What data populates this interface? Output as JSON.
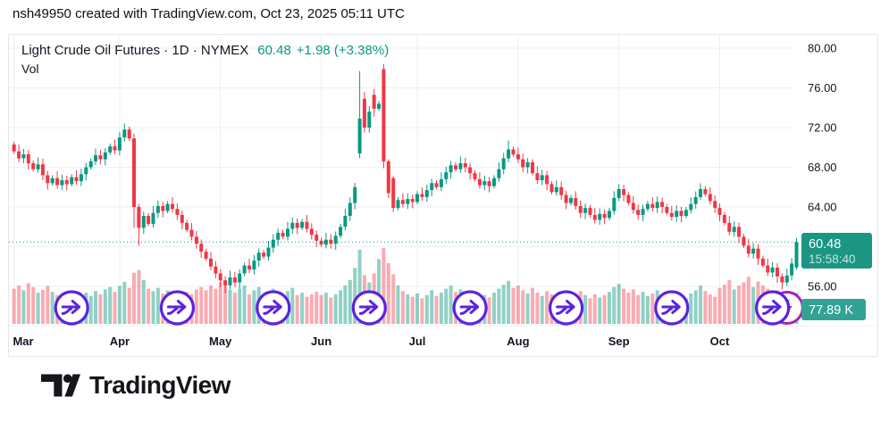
{
  "header": {
    "attribution": "nsh49950 created with TradingView.com, Oct 23, 2025 05:11 UTC"
  },
  "chart": {
    "legend": {
      "title": "Light Crude Oil Futures · 1D · NYMEX",
      "price": "60.48",
      "change": "+1.98 (+3.38%)",
      "indicator_label": "Vol"
    },
    "price_badge": {
      "price": "60.48",
      "countdown": "15:58:40"
    },
    "volume_badge": "77.89 K"
  },
  "ui": {
    "up": "#089981",
    "down": "#F23645",
    "vol_up": "rgba(8,153,129,0.45)",
    "vol_down": "rgba(242,54,69,0.42)",
    "grid": "#EDEFF3",
    "text": "#131722",
    "accent_purple": "#5B23E0",
    "accent_magenta": "#A224B5",
    "badge_price_bg": "#1A9683",
    "badge_vol_bg": "#32A294"
  },
  "chart_data": {
    "type": "candlestick",
    "title": "Light Crude Oil Futures · 1D · NYMEX",
    "interval": "1D",
    "exchange": "NYMEX",
    "last": 60.48,
    "change_abs": 1.98,
    "change_pct": 3.38,
    "countdown": "15:58:40",
    "last_volume_k": 77.89,
    "y_axis": {
      "ticks": [
        80,
        76,
        72,
        68,
        64,
        60,
        56
      ],
      "tick_labels": [
        "80.00",
        "76.00",
        "72.00",
        "68.00",
        "64.00",
        "60.00",
        "56.00"
      ],
      "hidden_ticks": [
        60
      ],
      "range": [
        54.5,
        81.5
      ]
    },
    "x_axis": {
      "labels": [
        "Mar",
        "Apr",
        "May",
        "Jun",
        "Jul",
        "Aug",
        "Sep",
        "Oct"
      ],
      "month_start_indices": [
        0,
        22,
        43,
        64,
        84,
        105,
        126,
        147
      ]
    },
    "first_open": 70.3,
    "closes": [
      69.6,
      68.9,
      69.3,
      68.4,
      67.8,
      68.3,
      67.2,
      66.4,
      66.9,
      66.2,
      66.7,
      66.3,
      67.0,
      66.6,
      67.3,
      68.0,
      68.6,
      69.2,
      68.8,
      69.5,
      70.1,
      69.7,
      71.0,
      71.8,
      70.9,
      64.0,
      61.9,
      63.1,
      62.3,
      63.4,
      64.1,
      63.6,
      64.3,
      63.8,
      63.2,
      62.4,
      61.7,
      61.0,
      60.3,
      59.5,
      58.8,
      58.0,
      57.3,
      56.6,
      56.1,
      56.9,
      56.4,
      57.3,
      58.1,
      57.7,
      58.6,
      59.4,
      59.0,
      59.9,
      60.7,
      61.4,
      61.0,
      61.8,
      62.4,
      61.9,
      62.5,
      61.8,
      61.2,
      60.6,
      60.2,
      60.7,
      60.3,
      61.1,
      62.0,
      63.1,
      64.4,
      66.0,
      72.9,
      72.0,
      73.6,
      73.9,
      74.4,
      68.6,
      65.4,
      63.9,
      64.7,
      64.3,
      64.8,
      64.5,
      65.3,
      65.0,
      65.7,
      66.4,
      66.0,
      66.8,
      67.5,
      68.2,
      67.8,
      68.4,
      68.0,
      67.4,
      66.8,
      66.2,
      66.6,
      66.1,
      66.9,
      67.8,
      68.9,
      69.8,
      69.3,
      68.8,
      68.0,
      68.5,
      67.4,
      66.7,
      67.2,
      66.3,
      65.5,
      66.0,
      65.2,
      64.4,
      64.9,
      64.1,
      63.4,
      63.9,
      63.2,
      62.7,
      63.3,
      62.9,
      63.6,
      64.9,
      65.8,
      65.2,
      64.4,
      63.7,
      63.2,
      63.8,
      64.3,
      63.9,
      64.5,
      64.0,
      63.4,
      63.0,
      63.6,
      63.1,
      63.7,
      64.3,
      65.0,
      65.8,
      65.3,
      64.6,
      63.9,
      63.2,
      62.4,
      61.5,
      62.0,
      61.0,
      60.1,
      59.3,
      59.8,
      58.8,
      58.1,
      57.4,
      57.9,
      57.0,
      56.4,
      57.1,
      58.3,
      60.48
    ],
    "volumes_k": [
      88,
      96,
      84,
      102,
      92,
      78,
      85,
      95,
      80,
      72,
      76,
      68,
      74,
      66,
      72,
      78,
      70,
      82,
      74,
      86,
      92,
      80,
      95,
      105,
      90,
      128,
      135,
      110,
      88,
      82,
      90,
      76,
      84,
      72,
      78,
      70,
      80,
      74,
      86,
      92,
      84,
      96,
      88,
      104,
      96,
      86,
      78,
      88,
      96,
      74,
      84,
      92,
      72,
      80,
      88,
      76,
      70,
      82,
      90,
      72,
      78,
      68,
      74,
      80,
      72,
      78,
      66,
      74,
      84,
      96,
      110,
      140,
      186,
      122,
      104,
      126,
      162,
      190,
      152,
      124,
      96,
      82,
      74,
      68,
      76,
      64,
      72,
      84,
      70,
      78,
      88,
      96,
      80,
      86,
      74,
      68,
      76,
      64,
      72,
      66,
      78,
      88,
      98,
      108,
      90,
      96,
      84,
      76,
      90,
      78,
      70,
      82,
      74,
      66,
      78,
      70,
      76,
      68,
      82,
      72,
      64,
      74,
      66,
      72,
      80,
      92,
      100,
      88,
      78,
      86,
      72,
      80,
      70,
      76,
      84,
      68,
      74,
      66,
      78,
      70,
      64,
      76,
      84,
      96,
      82,
      74,
      68,
      90,
      98,
      110,
      86,
      96,
      104,
      118,
      92,
      106,
      96,
      88,
      78,
      84,
      72,
      64,
      70,
      77.89
    ],
    "ohlc_overrides": {
      "23": [
        71.0,
        72.4,
        70.6,
        71.8
      ],
      "25": [
        70.9,
        71.4,
        61.9,
        64.0
      ],
      "26": [
        64.0,
        64.3,
        60.1,
        61.9
      ],
      "44": [
        56.6,
        57.0,
        55.3,
        56.1
      ],
      "72": [
        69.4,
        77.7,
        68.9,
        72.9
      ],
      "73": [
        74.9,
        75.6,
        71.5,
        72.0
      ],
      "75": [
        75.3,
        75.9,
        73.1,
        73.9
      ],
      "77": [
        77.9,
        78.4,
        67.9,
        68.6
      ],
      "78": [
        68.6,
        68.8,
        64.9,
        65.4
      ],
      "79": [
        66.9,
        67.1,
        63.5,
        63.9
      ],
      "103": [
        68.9,
        70.7,
        68.5,
        69.8
      ],
      "126": [
        64.9,
        66.3,
        64.6,
        65.8
      ],
      "143": [
        65.0,
        66.4,
        64.7,
        65.8
      ],
      "160": [
        57.0,
        57.3,
        55.7,
        56.4
      ],
      "163": [
        57.9,
        60.9,
        57.7,
        60.48
      ]
    },
    "markers": {
      "arrow_indices": [
        12,
        34,
        54,
        74,
        95,
        115,
        137,
        158
      ],
      "lightning_index": 161
    }
  },
  "footer": {
    "brand": "TradingView"
  }
}
